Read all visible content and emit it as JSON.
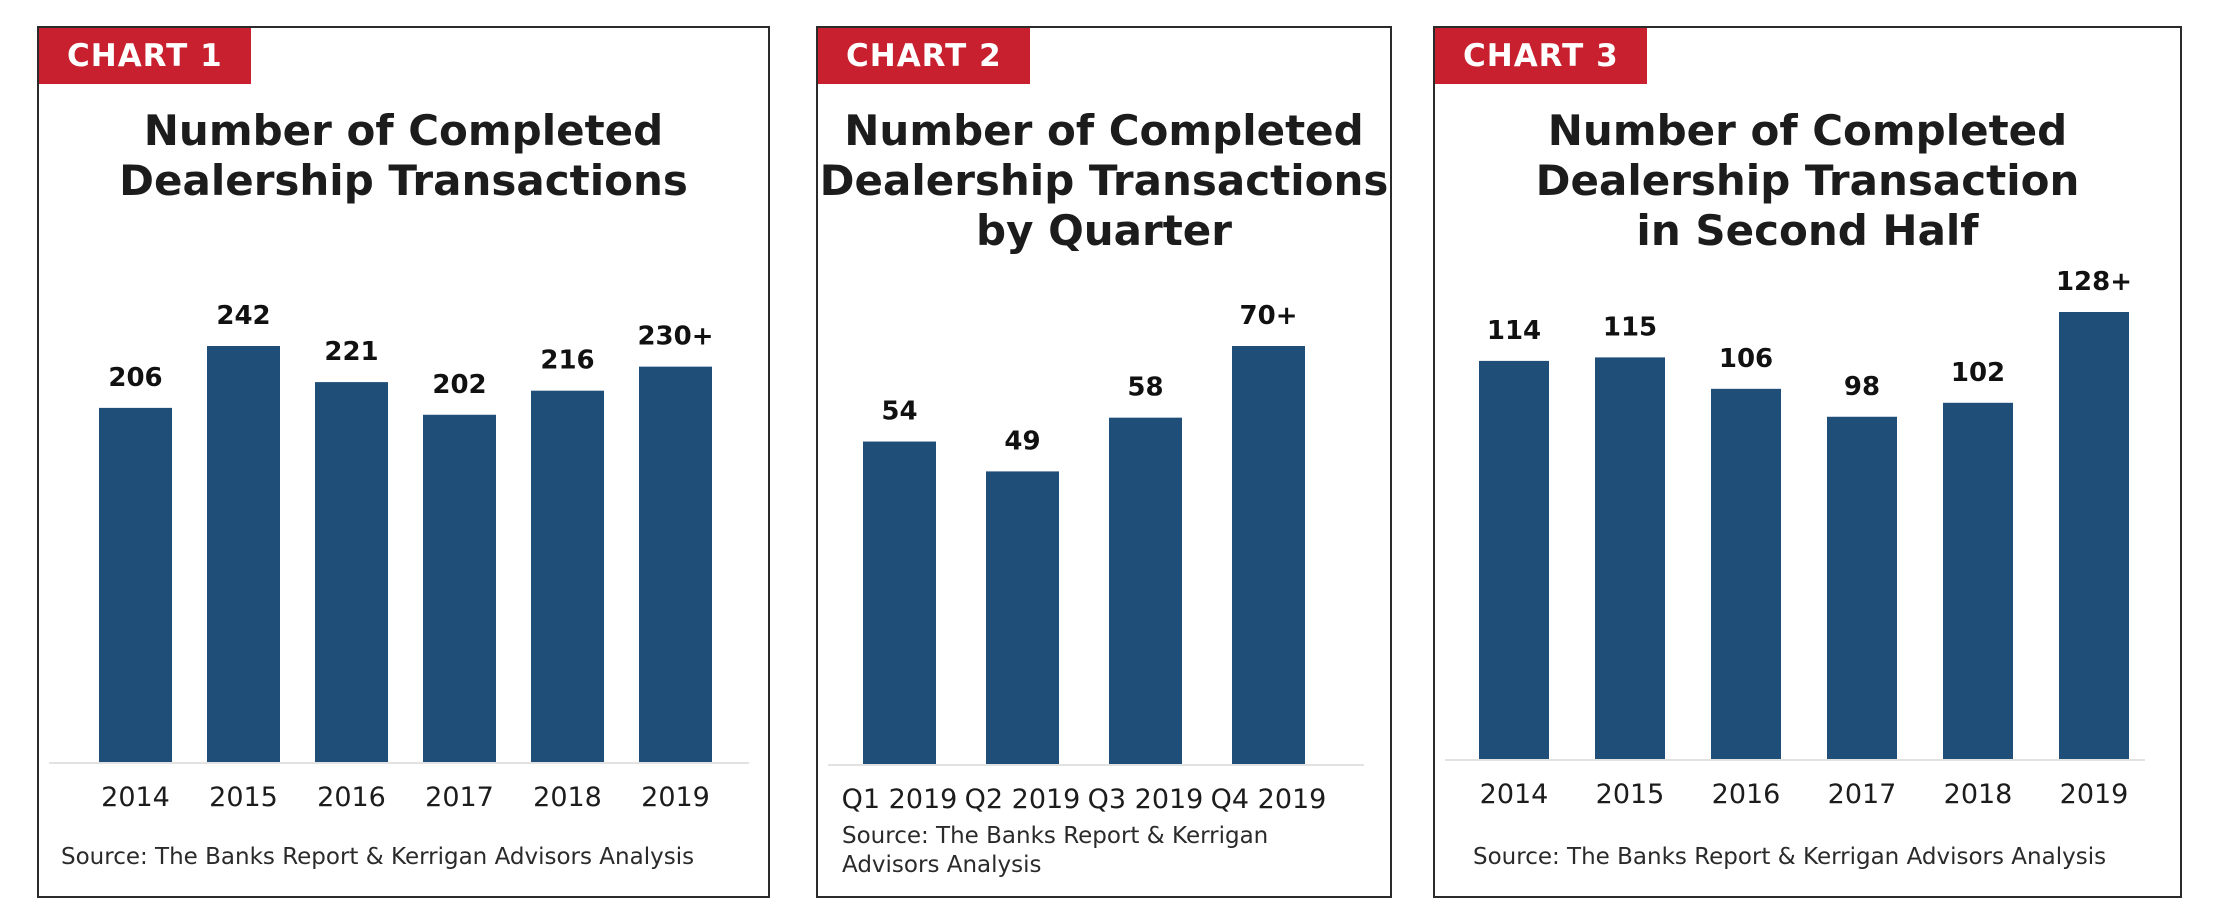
{
  "colors": {
    "bar": "#1f4e79",
    "badge": "#c8202e",
    "axis": "#d9d9d9"
  },
  "chart_data": [
    {
      "type": "bar",
      "badge": "CHART 1",
      "title_lines": [
        "Number of Completed",
        "Dealership Transactions"
      ],
      "categories": [
        "2014",
        "2015",
        "2016",
        "2017",
        "2018",
        "2019"
      ],
      "values": [
        206,
        242,
        221,
        202,
        216,
        230
      ],
      "value_labels": [
        "206",
        "242",
        "221",
        "202",
        "216",
        "230+"
      ],
      "source": "Source: The Banks Report & Kerrigan Advisors Analysis",
      "ylim": [
        0,
        242
      ],
      "grid": false,
      "legend": "none"
    },
    {
      "type": "bar",
      "badge": "CHART 2",
      "title_lines": [
        "Number of Completed",
        "Dealership Transactions",
        "by Quarter"
      ],
      "categories": [
        "Q1 2019",
        "Q2 2019",
        "Q3 2019",
        "Q4 2019"
      ],
      "values": [
        54,
        49,
        58,
        70
      ],
      "value_labels": [
        "54",
        "49",
        "58",
        "70+"
      ],
      "source": "Source: The Banks Report & Kerrigan Advisors Analysis",
      "ylim": [
        0,
        70
      ],
      "grid": false,
      "legend": "none"
    },
    {
      "type": "bar",
      "badge": "CHART 3",
      "title_lines": [
        "Number of Completed",
        "Dealership Transaction",
        "in Second Half"
      ],
      "categories": [
        "2014",
        "2015",
        "2016",
        "2017",
        "2018",
        "2019"
      ],
      "values": [
        114,
        115,
        106,
        98,
        102,
        128
      ],
      "value_labels": [
        "114",
        "115",
        "106",
        "98",
        "102",
        "128+"
      ],
      "source": "Source: The Banks Report & Kerrigan Advisors Analysis",
      "ylim": [
        0,
        128
      ],
      "grid": false,
      "legend": "none"
    }
  ]
}
